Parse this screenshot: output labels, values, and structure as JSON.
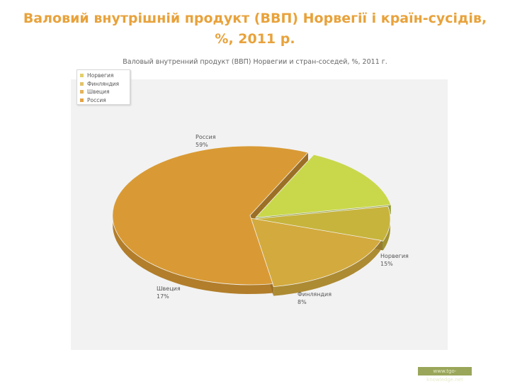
{
  "slide_title": "Валовий внутрішній продукт (ВВП) Норвегії і країн-сусідів, %, 2011 р.",
  "chart_data": {
    "type": "pie",
    "title": "Валовый внутренний продукт (ВВП) Норвегии и стран-соседей, %, 2011 г.",
    "legend_position": "top-left",
    "categories": [
      "Норвегия",
      "Финляндия",
      "Швеция",
      "Россия"
    ],
    "values": [
      15,
      8,
      17,
      59
    ],
    "value_labels": [
      "15%",
      "8%",
      "17%",
      "59%"
    ],
    "colors": [
      "#c9d84a",
      "#c7b43c",
      "#d3aa3e",
      "#d99a35"
    ],
    "legend_colors": [
      "#e3cf6a",
      "#e2c36a",
      "#e4b25a",
      "#e4a244"
    ]
  },
  "source_badge": "www.tgo-knowledge.net"
}
